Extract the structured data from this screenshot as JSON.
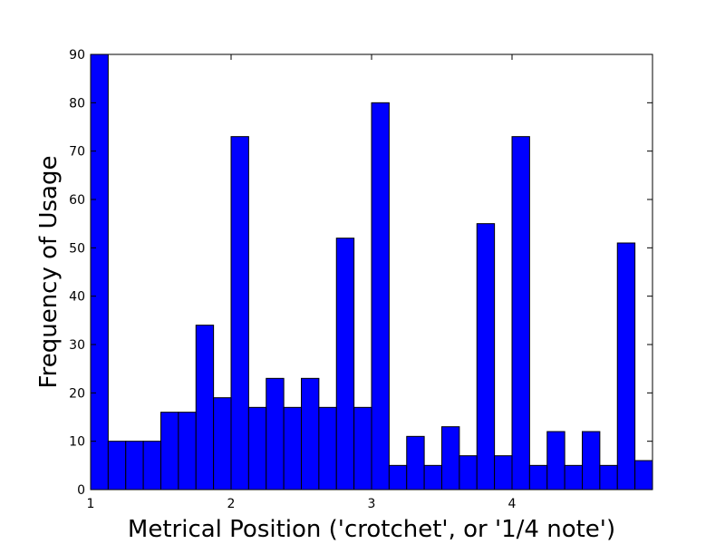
{
  "chart_data": {
    "type": "bar",
    "subtype": "histogram",
    "title": "",
    "xlabel": "Metrical Position ('crotchet', or '1/4 note')",
    "ylabel": "Frequency of Usage",
    "bar_color": "#0000ff",
    "edge_color": "#000000",
    "xlim": [
      1,
      5
    ],
    "ylim": [
      0,
      90
    ],
    "x_ticks": [
      1,
      2,
      3,
      4
    ],
    "x_tick_labels": [
      "1",
      "2",
      "3",
      "4"
    ],
    "y_ticks": [
      0,
      10,
      20,
      30,
      40,
      50,
      60,
      70,
      80,
      90
    ],
    "y_tick_labels": [
      "0",
      "10",
      "20",
      "30",
      "40",
      "50",
      "60",
      "70",
      "80",
      "90"
    ],
    "grid": false,
    "legend": "none",
    "bin_edges": [
      1.0,
      1.125,
      1.25,
      1.375,
      1.5,
      1.625,
      1.75,
      1.875,
      2.0,
      2.125,
      2.25,
      2.375,
      2.5,
      2.625,
      2.75,
      2.875,
      3.0,
      3.125,
      3.25,
      3.375,
      3.5,
      3.625,
      3.75,
      3.875,
      4.0,
      4.125,
      4.25,
      4.375,
      4.5,
      4.625,
      4.75,
      4.875,
      5.0
    ],
    "values": [
      90,
      10,
      10,
      10,
      16,
      16,
      34,
      19,
      73,
      17,
      23,
      17,
      23,
      17,
      52,
      17,
      80,
      5,
      11,
      5,
      13,
      7,
      55,
      7,
      73,
      5,
      12,
      5,
      12,
      5,
      51,
      6
    ]
  }
}
